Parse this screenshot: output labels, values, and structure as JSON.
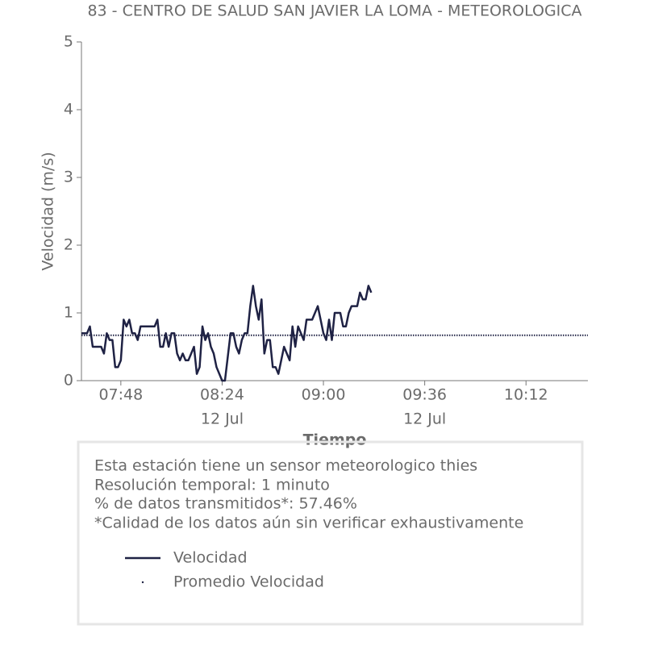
{
  "chart_data": {
    "type": "line",
    "title": "83 - CENTRO DE SALUD SAN JAVIER LA LOMA - METEOROLOGICA",
    "x_label": "Tiempo",
    "y_label": "Velocidad (m/s)",
    "xlim": [
      "07:34",
      "10:34"
    ],
    "xticks": [
      "07:48",
      "08:24",
      "09:00",
      "09:36",
      "10:12"
    ],
    "xtick_dates": [
      null,
      "12 Jul",
      null,
      "12 Jul",
      null
    ],
    "ylim": [
      0,
      5
    ],
    "yticks": [
      0,
      1,
      2,
      3,
      4,
      5
    ],
    "series": [
      {
        "name": "Velocidad",
        "color": "#1f2244",
        "style": "solid",
        "x": [
          "07:34",
          "07:36",
          "07:37",
          "07:38",
          "07:41",
          "07:42",
          "07:43",
          "07:44",
          "07:45",
          "07:46",
          "07:47",
          "07:48",
          "07:49",
          "07:50",
          "07:51",
          "07:52",
          "07:53",
          "07:54",
          "07:55",
          "08:00",
          "08:01",
          "08:02",
          "08:03",
          "08:04",
          "08:05",
          "08:06",
          "08:07",
          "08:08",
          "08:09",
          "08:10",
          "08:11",
          "08:12",
          "08:14",
          "08:15",
          "08:16",
          "08:17",
          "08:18",
          "08:19",
          "08:20",
          "08:21",
          "08:22",
          "08:24",
          "08:25",
          "08:27",
          "08:28",
          "08:29",
          "08:30",
          "08:31",
          "08:32",
          "08:33",
          "08:34",
          "08:35",
          "08:36",
          "08:37",
          "08:38",
          "08:39",
          "08:40",
          "08:41",
          "08:42",
          "08:43",
          "08:44",
          "08:46",
          "08:48",
          "08:49",
          "08:50",
          "08:51",
          "08:53",
          "08:54",
          "08:56",
          "08:58",
          "08:59",
          "09:00",
          "09:01",
          "09:02",
          "09:03",
          "09:04",
          "09:06",
          "09:07",
          "09:08",
          "09:09",
          "09:10",
          "09:12",
          "09:13",
          "09:14",
          "09:15",
          "09:16",
          "09:17"
        ],
        "values": [
          0.7,
          0.7,
          0.8,
          0.5,
          0.5,
          0.4,
          0.7,
          0.6,
          0.6,
          0.2,
          0.2,
          0.3,
          0.9,
          0.8,
          0.9,
          0.7,
          0.7,
          0.6,
          0.8,
          0.8,
          0.9,
          0.5,
          0.5,
          0.7,
          0.5,
          0.7,
          0.7,
          0.4,
          0.3,
          0.4,
          0.3,
          0.3,
          0.5,
          0.1,
          0.2,
          0.8,
          0.6,
          0.7,
          0.5,
          0.4,
          0.2,
          0.0,
          0.0,
          0.7,
          0.7,
          0.5,
          0.4,
          0.6,
          0.7,
          0.7,
          1.1,
          1.4,
          1.1,
          0.9,
          1.2,
          0.4,
          0.6,
          0.6,
          0.2,
          0.2,
          0.1,
          0.5,
          0.3,
          0.8,
          0.5,
          0.8,
          0.6,
          0.9,
          0.9,
          1.1,
          0.9,
          0.7,
          0.6,
          0.9,
          0.6,
          1.0,
          1.0,
          0.8,
          0.8,
          1.0,
          1.1,
          1.1,
          1.3,
          1.2,
          1.2,
          1.4,
          1.3
        ]
      },
      {
        "name": "Promedio Velocidad",
        "color": "#1f2244",
        "style": "dotted",
        "x": [
          "07:34",
          "10:34"
        ],
        "values": [
          0.67,
          0.67
        ]
      }
    ],
    "info": [
      "Esta estación tiene un sensor meteorologico thies",
      "Resolución temporal: 1 minuto",
      "% de datos transmitidos*: 57.46%",
      "*Calidad de los datos aún sin verificar exhaustivamente"
    ]
  }
}
